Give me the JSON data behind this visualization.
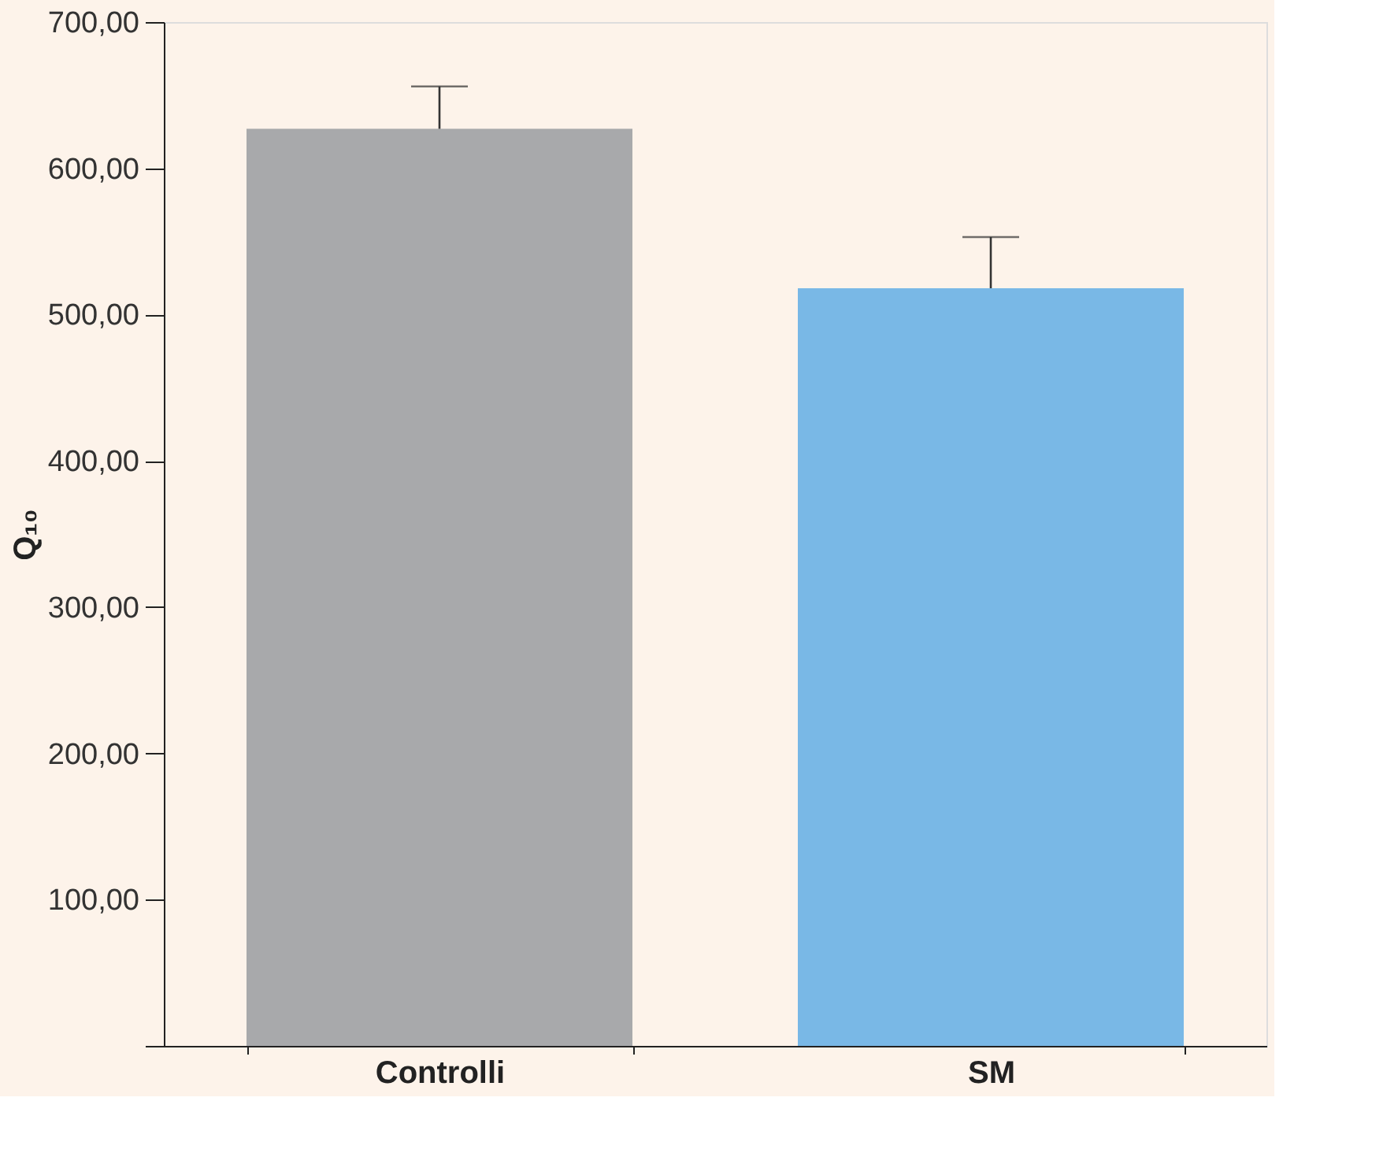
{
  "chart_data": {
    "type": "bar",
    "ylabel": "Q₁₀",
    "categories": [
      "Controlli",
      "SM"
    ],
    "values": [
      627,
      518
    ],
    "colors": [
      "#a8a9ab",
      "#79b8e6"
    ],
    "errors": [
      [
        627,
        656
      ],
      [
        518,
        553
      ]
    ],
    "ylim": [
      0,
      700
    ],
    "yticks": [
      {
        "value": 0,
        "label": null
      },
      {
        "value": 100,
        "label": "100,00"
      },
      {
        "value": 200,
        "label": "200,00"
      },
      {
        "value": 300,
        "label": "300,00"
      },
      {
        "value": 400,
        "label": "400,00"
      },
      {
        "value": 500,
        "label": "500,00"
      },
      {
        "value": 600,
        "label": "600,00"
      },
      {
        "value": 700,
        "label": "700,00"
      }
    ],
    "grid": false
  }
}
